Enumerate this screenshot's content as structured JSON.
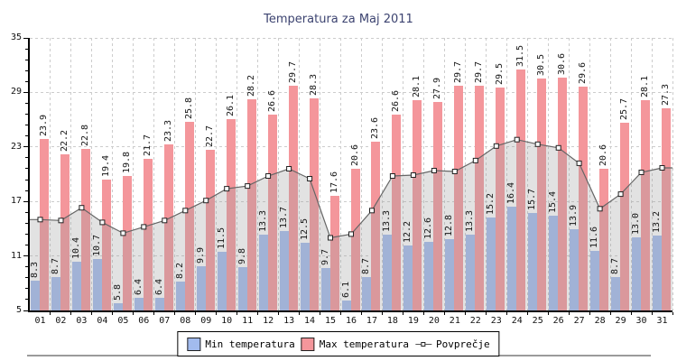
{
  "title": "Temperatura za Maj 2011",
  "chart_data": {
    "type": "bar",
    "title": "Temperatura za Maj 2011",
    "categories": [
      "01",
      "02",
      "03",
      "04",
      "05",
      "06",
      "07",
      "08",
      "09",
      "10",
      "11",
      "12",
      "13",
      "14",
      "15",
      "16",
      "17",
      "18",
      "19",
      "20",
      "21",
      "22",
      "23",
      "24",
      "25",
      "26",
      "27",
      "28",
      "29",
      "30",
      "31"
    ],
    "series": [
      {
        "name": "Min temperatura",
        "type": "bar",
        "color": "#A2BBEE",
        "values": [
          8.3,
          8.7,
          10.4,
          10.7,
          5.8,
          6.4,
          6.4,
          8.2,
          9.9,
          11.5,
          9.8,
          13.3,
          13.7,
          12.5,
          9.7,
          6.1,
          8.7,
          13.3,
          12.2,
          12.6,
          12.8,
          13.3,
          15.2,
          16.4,
          15.7,
          15.4,
          13.9,
          11.6,
          8.7,
          13.0,
          13.2
        ]
      },
      {
        "name": "Max temperatura",
        "type": "bar",
        "color": "#F4969B",
        "values": [
          23.9,
          22.2,
          22.8,
          19.4,
          19.8,
          21.7,
          23.3,
          25.8,
          22.7,
          26.1,
          28.2,
          26.6,
          29.7,
          28.3,
          17.6,
          20.6,
          23.6,
          26.6,
          28.1,
          27.9,
          29.7,
          29.7,
          29.5,
          31.5,
          30.5,
          30.6,
          29.6,
          20.6,
          25.7,
          28.1,
          27.3
        ]
      },
      {
        "name": "Povprečje",
        "type": "line",
        "color": "#666666",
        "marker": "square",
        "area_fill": "rgba(160,160,160,0.3)",
        "values": [
          15.0,
          14.9,
          16.3,
          14.7,
          13.5,
          14.2,
          14.9,
          16.0,
          17.1,
          18.4,
          18.7,
          19.8,
          20.6,
          19.5,
          13.0,
          13.4,
          16.0,
          19.8,
          19.9,
          20.4,
          20.3,
          21.5,
          23.1,
          23.8,
          23.3,
          22.9,
          21.2,
          16.2,
          17.8,
          20.2,
          20.7
        ]
      }
    ],
    "ylim": [
      5,
      35
    ],
    "yticks": [
      5,
      11,
      17,
      23,
      29,
      35
    ],
    "y_minor_step": 1.2,
    "grid": true,
    "legend_position": "bottom",
    "value_labels": "rotated-90"
  }
}
